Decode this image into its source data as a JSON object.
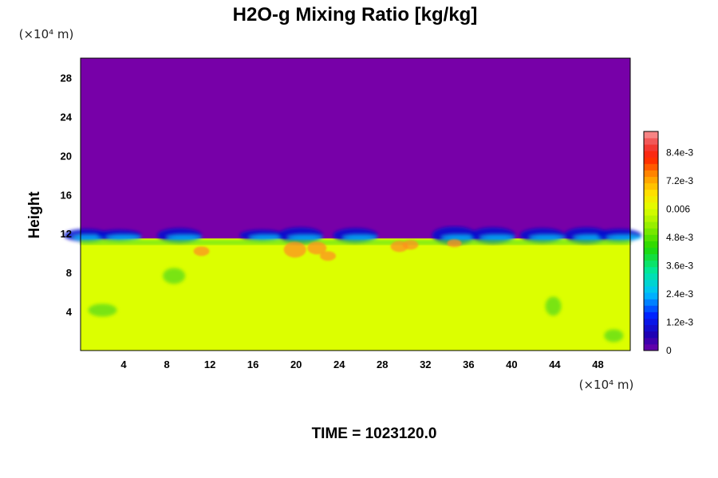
{
  "chart_data": {
    "type": "heatmap",
    "title": "H2O-g Mixing Ratio [kg/kg]",
    "xlabel": "",
    "ylabel": "Height",
    "x_unit": "(×10⁴ m)",
    "y_unit": "(×10⁴ m)",
    "xlim": [
      0,
      51
    ],
    "ylim": [
      0,
      30
    ],
    "x_ticks": [
      4,
      8,
      12,
      16,
      20,
      24,
      28,
      32,
      36,
      40,
      44,
      48
    ],
    "y_ticks": [
      4,
      8,
      12,
      16,
      20,
      24,
      28
    ],
    "colorbar": {
      "min": 0,
      "max": 0.0093,
      "labels": [
        "0",
        "1.2e-3",
        "2.4e-3",
        "3.6e-3",
        "4.8e-3",
        "0.006",
        "7.2e-3",
        "8.4e-3"
      ],
      "label_values": [
        0,
        0.0012,
        0.0024,
        0.0036,
        0.0048,
        0.006,
        0.0072,
        0.0084
      ]
    },
    "field_summary": {
      "upper_layer_value": 0,
      "lower_layer_value": 0.0063,
      "interface_height": 11.5
    },
    "grid": false,
    "legend": "colorbar-right"
  },
  "footer": {
    "time_label": "TIME = 1023120.0"
  },
  "colors": {
    "dry": "#7700a8",
    "moist": "#dcff00",
    "frame": "#000000"
  }
}
